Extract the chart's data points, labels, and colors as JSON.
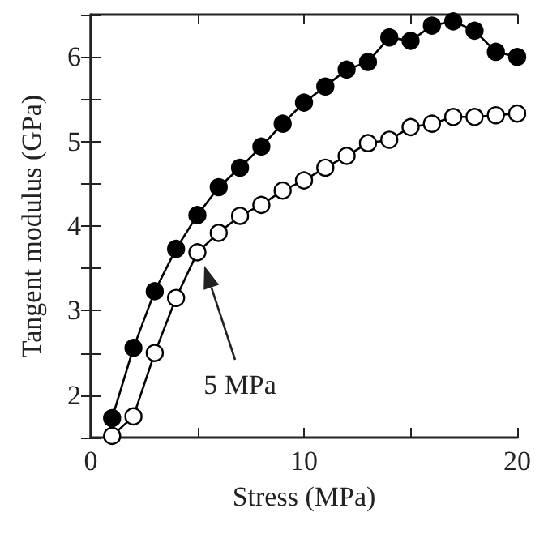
{
  "chart_data": {
    "type": "line",
    "xlabel": "Stress (MPa)",
    "ylabel": "Tangent modulus (GPa)",
    "x": [
      1,
      2,
      3,
      4,
      5,
      6,
      7,
      8,
      9,
      10,
      11,
      12,
      13,
      14,
      15,
      16,
      17,
      18,
      19,
      20
    ],
    "series": [
      {
        "color": "#000000",
        "marker": "circle",
        "values": [
          1.73,
          2.56,
          3.23,
          3.73,
          4.13,
          4.46,
          4.69,
          4.94,
          5.21,
          5.46,
          5.65,
          5.85,
          5.94,
          6.23,
          6.19,
          6.37,
          6.42,
          6.31,
          6.06,
          6.0
        ]
      },
      {
        "color": "#ffffff",
        "marker": "circle",
        "values": [
          1.52,
          1.75,
          2.5,
          3.15,
          3.69,
          3.92,
          4.12,
          4.25,
          4.42,
          4.54,
          4.69,
          4.83,
          4.98,
          5.02,
          5.17,
          5.21,
          5.29,
          5.29,
          5.31,
          5.33
        ]
      }
    ],
    "xlim": [
      0,
      20
    ],
    "xticks": [
      0,
      {
        "value": 5,
        "label": null
      },
      10,
      {
        "value": 15,
        "label": null
      },
      20
    ],
    "ylim": [
      1.5,
      6.5
    ],
    "yticks": [
      {
        "value": 1.5,
        "label": null
      },
      2,
      {
        "value": 2.5,
        "label": null
      },
      3,
      {
        "value": 3.5,
        "label": null
      },
      4,
      {
        "value": 4.5,
        "label": null
      },
      5,
      {
        "value": 5.5,
        "label": null
      },
      6,
      {
        "value": 6.5,
        "label": null
      }
    ],
    "annotations": [
      "5 MPa"
    ],
    "grid": false,
    "line_style": "solid"
  }
}
